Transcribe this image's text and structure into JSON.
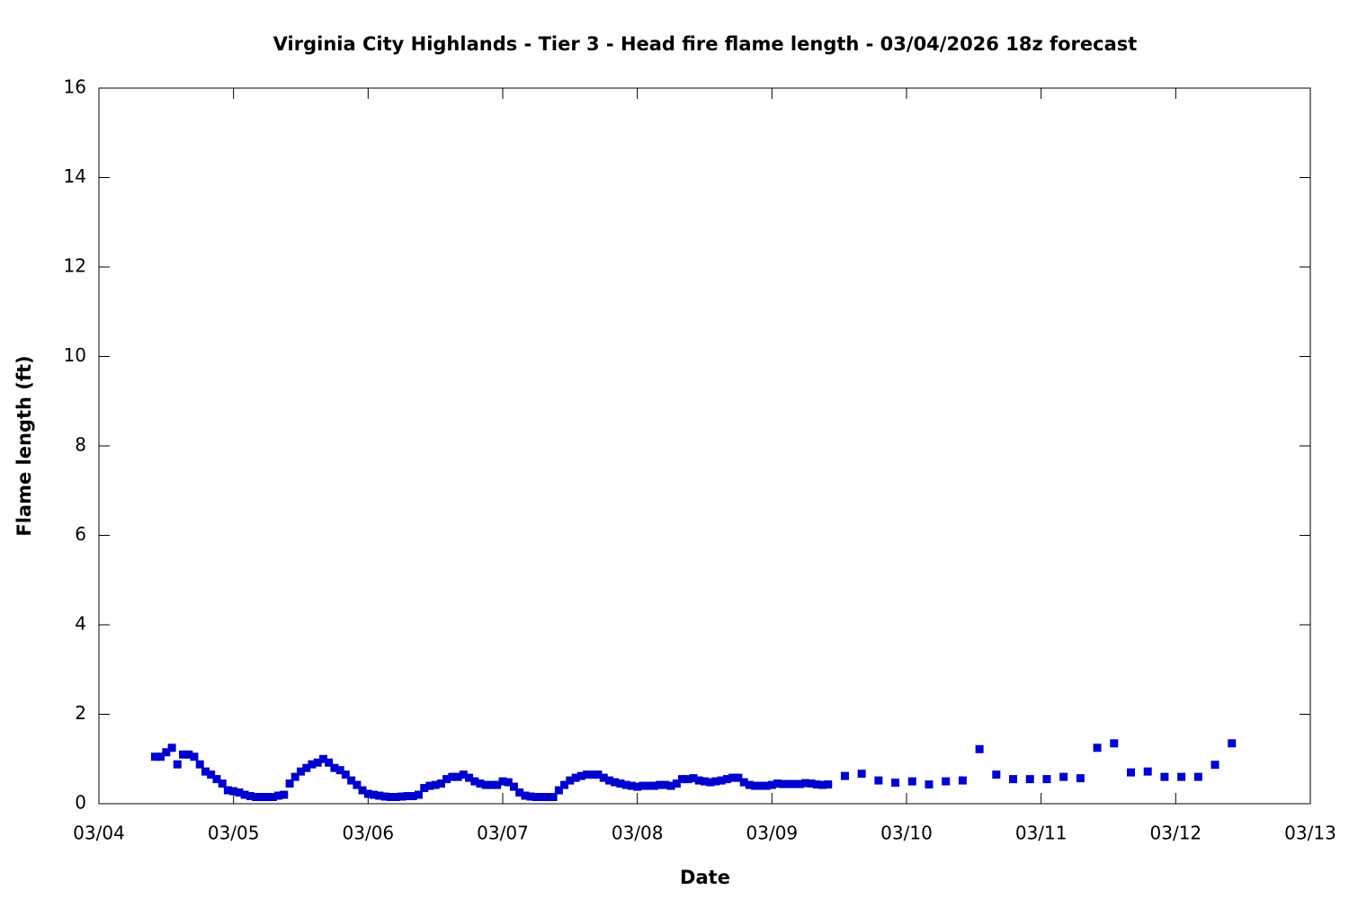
{
  "chart_data": {
    "type": "scatter",
    "title": "Virginia City Highlands - Tier 3 - Head fire flame length - 03/04/2026 18z forecast",
    "x_label": "Date",
    "y_label": "Flame length (ft)",
    "color": "#0000cc",
    "x": [
      4.417,
      4.458,
      4.5,
      4.542,
      4.583,
      4.625,
      4.667,
      4.708,
      4.75,
      4.792,
      4.833,
      4.875,
      4.917,
      4.958,
      5,
      5.042,
      5.083,
      5.125,
      5.167,
      5.208,
      5.25,
      5.292,
      5.333,
      5.375,
      5.417,
      5.458,
      5.5,
      5.542,
      5.583,
      5.625,
      5.667,
      5.708,
      5.75,
      5.792,
      5.833,
      5.875,
      5.917,
      5.958,
      6,
      6.042,
      6.083,
      6.125,
      6.167,
      6.208,
      6.25,
      6.292,
      6.333,
      6.375,
      6.417,
      6.458,
      6.5,
      6.542,
      6.583,
      6.625,
      6.667,
      6.708,
      6.75,
      6.792,
      6.833,
      6.875,
      6.917,
      6.958,
      7,
      7.042,
      7.083,
      7.125,
      7.167,
      7.208,
      7.25,
      7.292,
      7.333,
      7.375,
      7.417,
      7.458,
      7.5,
      7.542,
      7.583,
      7.625,
      7.667,
      7.708,
      7.75,
      7.792,
      7.833,
      7.875,
      7.917,
      7.958,
      8,
      8.042,
      8.083,
      8.125,
      8.167,
      8.208,
      8.25,
      8.292,
      8.333,
      8.375,
      8.417,
      8.458,
      8.5,
      8.542,
      8.583,
      8.625,
      8.667,
      8.708,
      8.75,
      8.792,
      8.833,
      8.875,
      8.917,
      8.958,
      9,
      9.042,
      9.083,
      9.125,
      9.167,
      9.208,
      9.25,
      9.292,
      9.333,
      9.375,
      9.417,
      9.542,
      9.667,
      9.792,
      9.917,
      10.042,
      10.167,
      10.292,
      10.417,
      10.542,
      10.667,
      10.792,
      10.917,
      11.042,
      11.167,
      11.292,
      11.417,
      11.542,
      11.667,
      11.792,
      11.917,
      12.042,
      12.167,
      12.292,
      12.417
    ],
    "values": [
      1.05,
      1.05,
      1.15,
      1.25,
      0.88,
      1.1,
      1.1,
      1.05,
      0.88,
      0.72,
      0.65,
      0.55,
      0.45,
      0.3,
      0.28,
      0.25,
      0.2,
      0.17,
      0.15,
      0.15,
      0.15,
      0.15,
      0.18,
      0.2,
      0.45,
      0.6,
      0.72,
      0.8,
      0.88,
      0.92,
      1.0,
      0.92,
      0.8,
      0.75,
      0.65,
      0.52,
      0.42,
      0.3,
      0.22,
      0.2,
      0.18,
      0.16,
      0.15,
      0.15,
      0.16,
      0.17,
      0.17,
      0.2,
      0.35,
      0.4,
      0.42,
      0.45,
      0.55,
      0.6,
      0.6,
      0.65,
      0.58,
      0.5,
      0.45,
      0.42,
      0.42,
      0.42,
      0.5,
      0.48,
      0.38,
      0.25,
      0.18,
      0.16,
      0.15,
      0.15,
      0.15,
      0.15,
      0.3,
      0.42,
      0.52,
      0.58,
      0.62,
      0.65,
      0.65,
      0.65,
      0.58,
      0.52,
      0.48,
      0.45,
      0.42,
      0.4,
      0.38,
      0.4,
      0.4,
      0.4,
      0.42,
      0.42,
      0.4,
      0.45,
      0.55,
      0.55,
      0.57,
      0.52,
      0.5,
      0.48,
      0.5,
      0.52,
      0.55,
      0.58,
      0.58,
      0.48,
      0.42,
      0.4,
      0.4,
      0.4,
      0.42,
      0.45,
      0.44,
      0.44,
      0.44,
      0.44,
      0.46,
      0.45,
      0.43,
      0.42,
      0.43,
      0.62,
      0.67,
      0.52,
      0.47,
      0.5,
      0.43,
      0.5,
      0.52,
      1.22,
      0.65,
      0.55,
      0.55,
      0.55,
      0.6,
      0.57,
      1.25,
      1.35,
      0.7,
      0.72,
      0.6,
      0.6,
      0.6,
      0.87,
      1.35
    ],
    "xlim": [
      4,
      13
    ],
    "xticks": [
      {
        "value": 4,
        "label": "03/04"
      },
      {
        "value": 5,
        "label": "03/05"
      },
      {
        "value": 6,
        "label": "03/06"
      },
      {
        "value": 7,
        "label": "03/07"
      },
      {
        "value": 8,
        "label": "03/08"
      },
      {
        "value": 9,
        "label": "03/09"
      },
      {
        "value": 10,
        "label": "03/10"
      },
      {
        "value": 11,
        "label": "03/11"
      },
      {
        "value": 12,
        "label": "03/12"
      },
      {
        "value": 13,
        "label": "03/13"
      }
    ],
    "ylim": [
      0,
      16
    ],
    "yticks": [
      0,
      2,
      4,
      6,
      8,
      10,
      12,
      14,
      16
    ]
  }
}
